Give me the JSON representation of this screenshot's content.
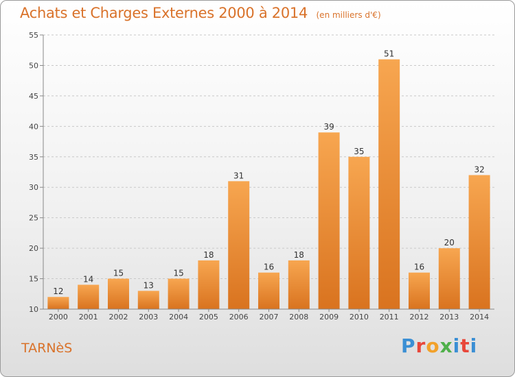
{
  "header": {
    "title": "Achats et Charges Externes 2000 à 2014",
    "unit": "(en milliers d'€)"
  },
  "footer": {
    "commune": "TARNèS",
    "brand": "Proxiti",
    "brand_colors": [
      "#3b8fd4",
      "#e8473a",
      "#f2a12a",
      "#4fb04a",
      "#3b8fd4",
      "#e8473a",
      "#3b8fd4"
    ]
  },
  "colors": {
    "bar_top": "#f7a650",
    "bar_bottom": "#d9731f",
    "accent": "#d9722a",
    "axis": "#888888",
    "grid": "#c8c8c8"
  },
  "chart_data": {
    "type": "bar",
    "categories": [
      "2000",
      "2001",
      "2002",
      "2003",
      "2004",
      "2005",
      "2006",
      "2007",
      "2008",
      "2009",
      "2010",
      "2011",
      "2012",
      "2013",
      "2014"
    ],
    "values": [
      12,
      14,
      15,
      13,
      15,
      18,
      31,
      16,
      18,
      39,
      35,
      51,
      16,
      20,
      32
    ],
    "ylim": [
      10,
      55
    ],
    "yticks": [
      10,
      15,
      20,
      25,
      30,
      35,
      40,
      45,
      50,
      55
    ],
    "grid": "horizontal dashed",
    "title": "Achats et Charges Externes 2000 à 2014",
    "xlabel": "",
    "ylabel": ""
  }
}
